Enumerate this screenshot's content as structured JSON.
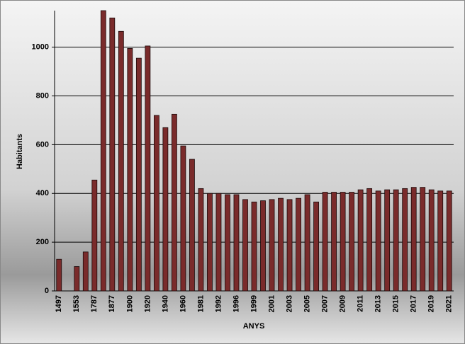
{
  "chart_data": {
    "type": "bar",
    "x_label": "ANYS",
    "y_label": "Habitants",
    "categories": [
      "1497",
      null,
      "1553",
      null,
      "1787",
      null,
      "1877",
      null,
      "1900",
      null,
      "1920",
      null,
      "1940",
      null,
      "1960",
      null,
      "1981",
      null,
      "1992",
      null,
      "1996",
      null,
      "1999",
      null,
      "2001",
      null,
      "2003",
      null,
      "2005",
      null,
      "2007",
      null,
      "2009",
      null,
      "2011",
      null,
      "2013",
      null,
      "2015",
      null,
      "2017",
      null,
      "2019",
      null,
      "2021"
    ],
    "values": [
      130,
      null,
      100,
      160,
      455,
      1150,
      1120,
      1065,
      995,
      955,
      1005,
      720,
      670,
      725,
      595,
      540,
      420,
      400,
      400,
      395,
      395,
      375,
      365,
      370,
      375,
      380,
      375,
      380,
      395,
      365,
      405,
      405,
      405,
      405,
      415,
      420,
      410,
      415,
      415,
      420,
      425,
      425,
      415,
      410,
      410
    ],
    "color": "#7a2b2b",
    "ylim": [
      0,
      1150
    ],
    "yticks": [
      0,
      200,
      400,
      600,
      800,
      1000
    ],
    "grid": true
  }
}
